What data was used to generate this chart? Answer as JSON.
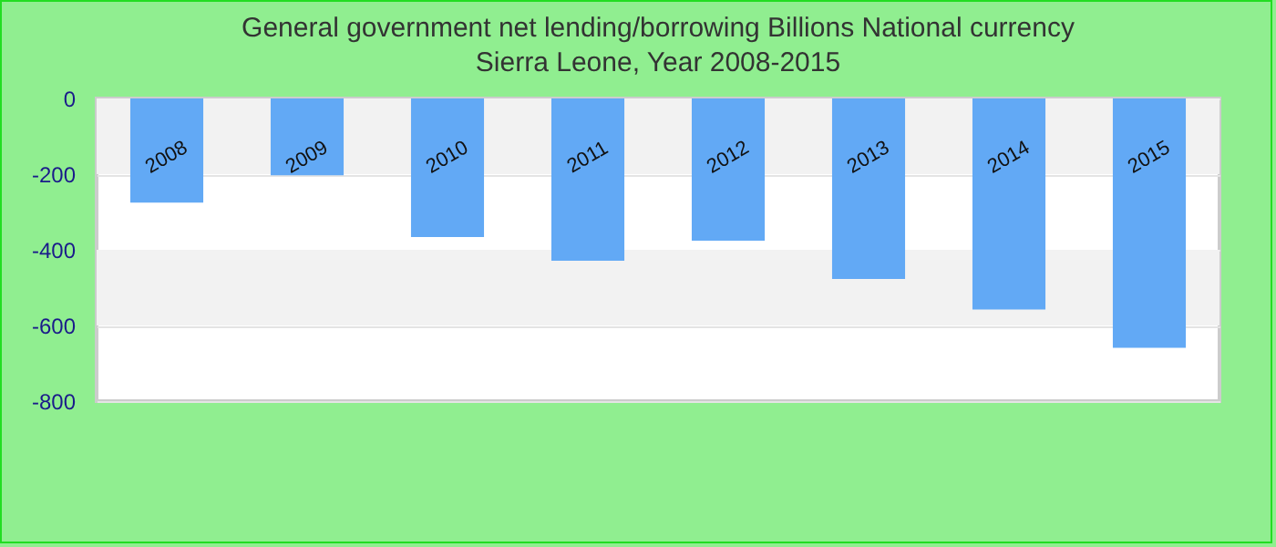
{
  "chart_data": {
    "type": "bar",
    "title": "General government net lending/borrowing Billions National currency",
    "subtitle": "Sierra Leone, Year 2008-2015",
    "categories": [
      "2008",
      "2009",
      "2010",
      "2011",
      "2012",
      "2013",
      "2014",
      "2015"
    ],
    "values": [
      -275,
      -203,
      -366,
      -429,
      -376,
      -477,
      -558,
      -659
    ],
    "color": "#62a9f5",
    "ylim": [
      -800,
      0
    ],
    "yticks": [
      -800,
      -600,
      -400,
      -200,
      0
    ],
    "grid": "y"
  }
}
